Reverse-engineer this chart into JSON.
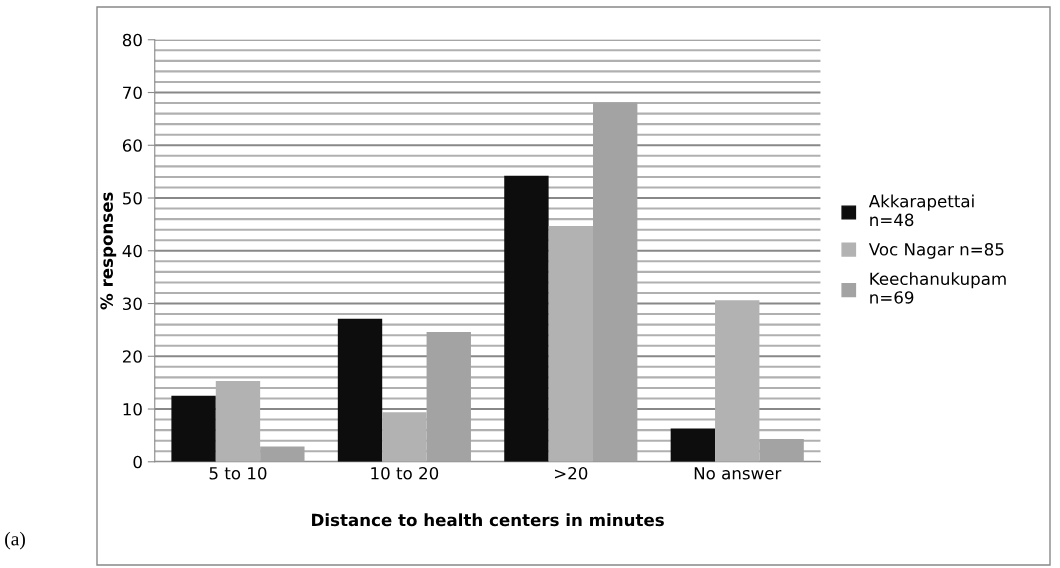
{
  "chart_data": {
    "type": "bar",
    "xlabel": "Distance to health centers in minutes",
    "ylabel": "% responses",
    "annotations": [
      "(a)"
    ],
    "categories": [
      "5 to 10",
      "10 to 20",
      ">20",
      "No answer"
    ],
    "series": [
      {
        "name": "Akkarapettai n=48",
        "color": "#0d0d0d",
        "values": [
          12.5,
          27.1,
          54.2,
          6.3
        ]
      },
      {
        "name": "Voc Nagar n=85",
        "color": "#b2b2b2",
        "values": [
          15.3,
          9.4,
          44.7,
          30.6
        ]
      },
      {
        "name": "Keechanukupam n=69",
        "color": "#a3a3a3",
        "values": [
          2.9,
          24.6,
          68.1,
          4.3
        ]
      }
    ],
    "ylim": [
      0,
      80
    ],
    "yticks": [
      0,
      {
        "value": 2,
        "label": null
      },
      {
        "value": 4,
        "label": null
      },
      {
        "value": 6,
        "label": null
      },
      {
        "value": 8,
        "label": null
      },
      10,
      {
        "value": 12,
        "label": null
      },
      {
        "value": 14,
        "label": null
      },
      {
        "value": 16,
        "label": null
      },
      {
        "value": 18,
        "label": null
      },
      20,
      {
        "value": 22,
        "label": null
      },
      {
        "value": 24,
        "label": null
      },
      {
        "value": 26,
        "label": null
      },
      {
        "value": 28,
        "label": null
      },
      30,
      {
        "value": 32,
        "label": null
      },
      {
        "value": 34,
        "label": null
      },
      {
        "value": 36,
        "label": null
      },
      {
        "value": 38,
        "label": null
      },
      40,
      {
        "value": 42,
        "label": null
      },
      {
        "value": 44,
        "label": null
      },
      {
        "value": 46,
        "label": null
      },
      {
        "value": 48,
        "label": null
      },
      50,
      {
        "value": 52,
        "label": null
      },
      {
        "value": 54,
        "label": null
      },
      {
        "value": 56,
        "label": null
      },
      {
        "value": 58,
        "label": null
      },
      60,
      {
        "value": 62,
        "label": null
      },
      {
        "value": 64,
        "label": null
      },
      {
        "value": 66,
        "label": null
      },
      {
        "value": 68,
        "label": null
      },
      70,
      {
        "value": 72,
        "label": null
      },
      {
        "value": 74,
        "label": null
      },
      {
        "value": 76,
        "label": null
      },
      {
        "value": 78,
        "label": null
      },
      80
    ],
    "grid": "y",
    "legend": "right"
  }
}
